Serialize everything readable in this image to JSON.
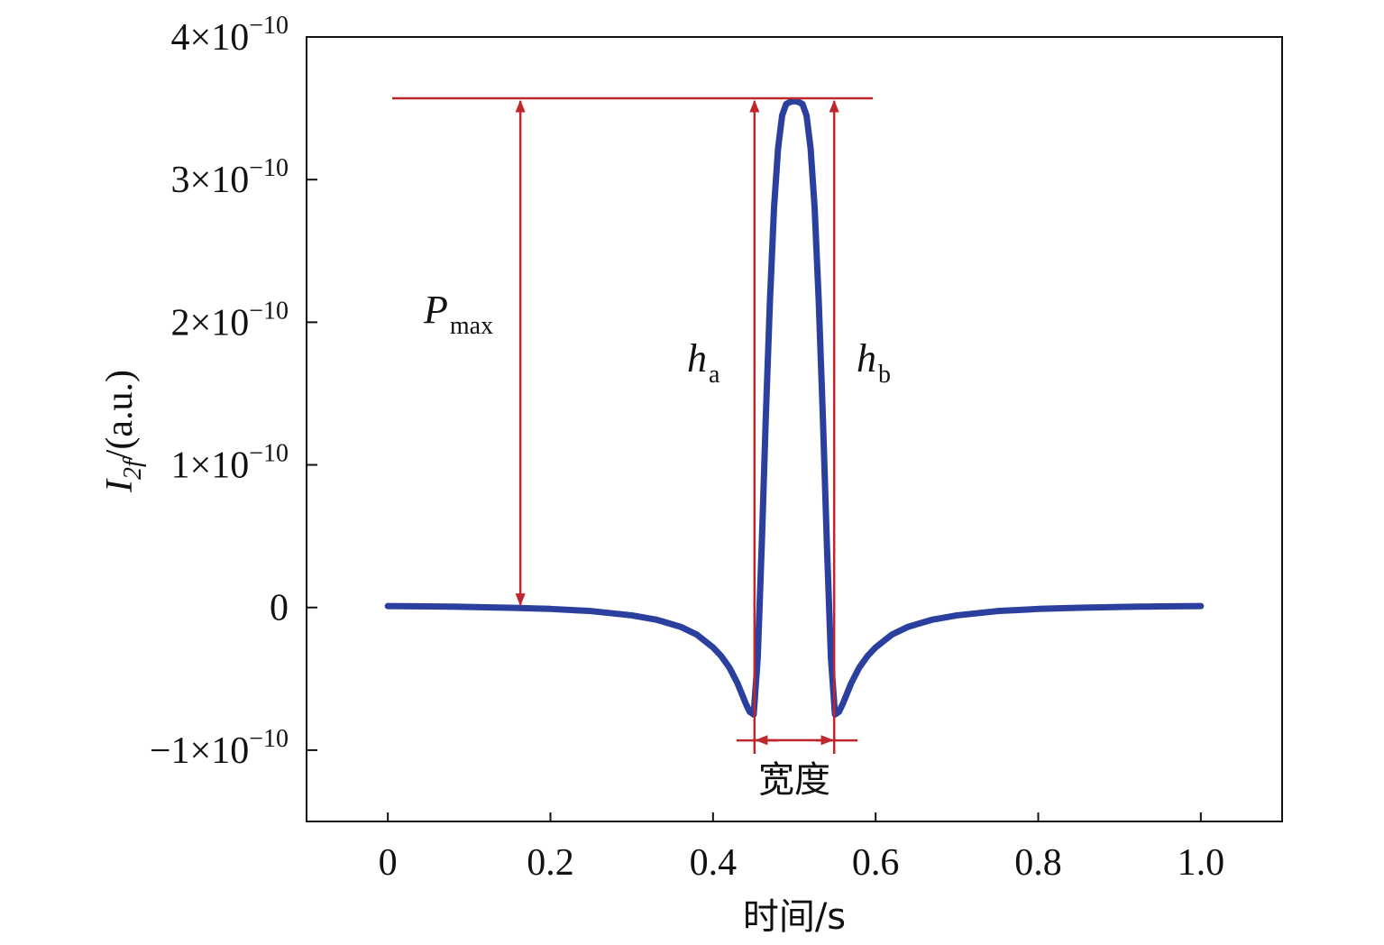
{
  "chart_data": {
    "type": "line",
    "title": "",
    "xlabel": "时间/s",
    "ylabel": {
      "base": "I",
      "sub": "2f",
      "unit": "/(a.u.)"
    },
    "xlim": [
      -0.1,
      1.1
    ],
    "ylim": [
      -1.5e-10,
      4e-10
    ],
    "x_ticks": [
      {
        "value": 0,
        "label": "0"
      },
      {
        "value": 0.2,
        "label": "0.2"
      },
      {
        "value": 0.4,
        "label": "0.4"
      },
      {
        "value": 0.6,
        "label": "0.6"
      },
      {
        "value": 0.8,
        "label": "0.8"
      },
      {
        "value": 1.0,
        "label": "1.0"
      }
    ],
    "y_ticks": [
      {
        "value": 4e-10,
        "mantissa": "4×10",
        "exp": "−10"
      },
      {
        "value": 3e-10,
        "mantissa": "3×10",
        "exp": "−10"
      },
      {
        "value": 2e-10,
        "mantissa": "2×10",
        "exp": "−10"
      },
      {
        "value": 1e-10,
        "mantissa": "1×10",
        "exp": "−10"
      },
      {
        "value": 0,
        "mantissa": "0",
        "exp": ""
      },
      {
        "value": -1e-10,
        "mantissa": "−1×10",
        "exp": "−10"
      }
    ],
    "grid": false,
    "series": [
      {
        "color": "#2b3f9e",
        "x": [
          0,
          0.05,
          0.1,
          0.15,
          0.2,
          0.25,
          0.3,
          0.33,
          0.36,
          0.38,
          0.4,
          0.41,
          0.42,
          0.43,
          0.44,
          0.445,
          0.45,
          0.455,
          0.46,
          0.465,
          0.47,
          0.475,
          0.48,
          0.485,
          0.49,
          0.495,
          0.5,
          0.505,
          0.51,
          0.515,
          0.52,
          0.525,
          0.53,
          0.535,
          0.54,
          0.545,
          0.55,
          0.555,
          0.56,
          0.57,
          0.58,
          0.59,
          0.6,
          0.62,
          0.64,
          0.67,
          0.7,
          0.75,
          0.8,
          0.85,
          0.9,
          0.95,
          1.0
        ],
        "y": [
          1e-12,
          8e-13,
          4e-13,
          -2e-13,
          -1e-12,
          -2.5e-12,
          -5.5e-12,
          -8.5e-12,
          -1.35e-11,
          -1.9e-11,
          -2.8e-11,
          -3.4e-11,
          -4.2e-11,
          -5.3e-11,
          -6.7e-11,
          -7.3e-11,
          -7.5e-11,
          -3.5e-11,
          4.5e-11,
          1.35e-10,
          2.15e-10,
          2.8e-10,
          3.22e-10,
          3.45e-10,
          3.53e-10,
          3.545e-10,
          3.55e-10,
          3.545e-10,
          3.53e-10,
          3.45e-10,
          3.22e-10,
          2.8e-10,
          2.15e-10,
          1.35e-10,
          4.5e-11,
          -3.5e-11,
          -7.5e-11,
          -7.3e-11,
          -6.7e-11,
          -5.3e-11,
          -4.2e-11,
          -3.4e-11,
          -2.8e-11,
          -1.9e-11,
          -1.35e-11,
          -8.5e-12,
          -5.5e-12,
          -2.5e-12,
          -1e-12,
          -2e-13,
          4e-13,
          8e-13,
          1e-12
        ]
      }
    ],
    "annotations": {
      "color": "#c0272d",
      "peak_value": 3.57e-10,
      "trough_value": -7.8e-11,
      "pmax": {
        "x": 0.163,
        "label_main": "P",
        "label_sub": "max"
      },
      "ha": {
        "x": 0.451,
        "label_main": "h",
        "label_sub": "a"
      },
      "hb": {
        "x": 0.549,
        "label_main": "h",
        "label_sub": "b"
      },
      "width": {
        "x_start": 0.451,
        "x_end": 0.549,
        "y": -9.3e-11,
        "label": "宽度"
      }
    }
  }
}
